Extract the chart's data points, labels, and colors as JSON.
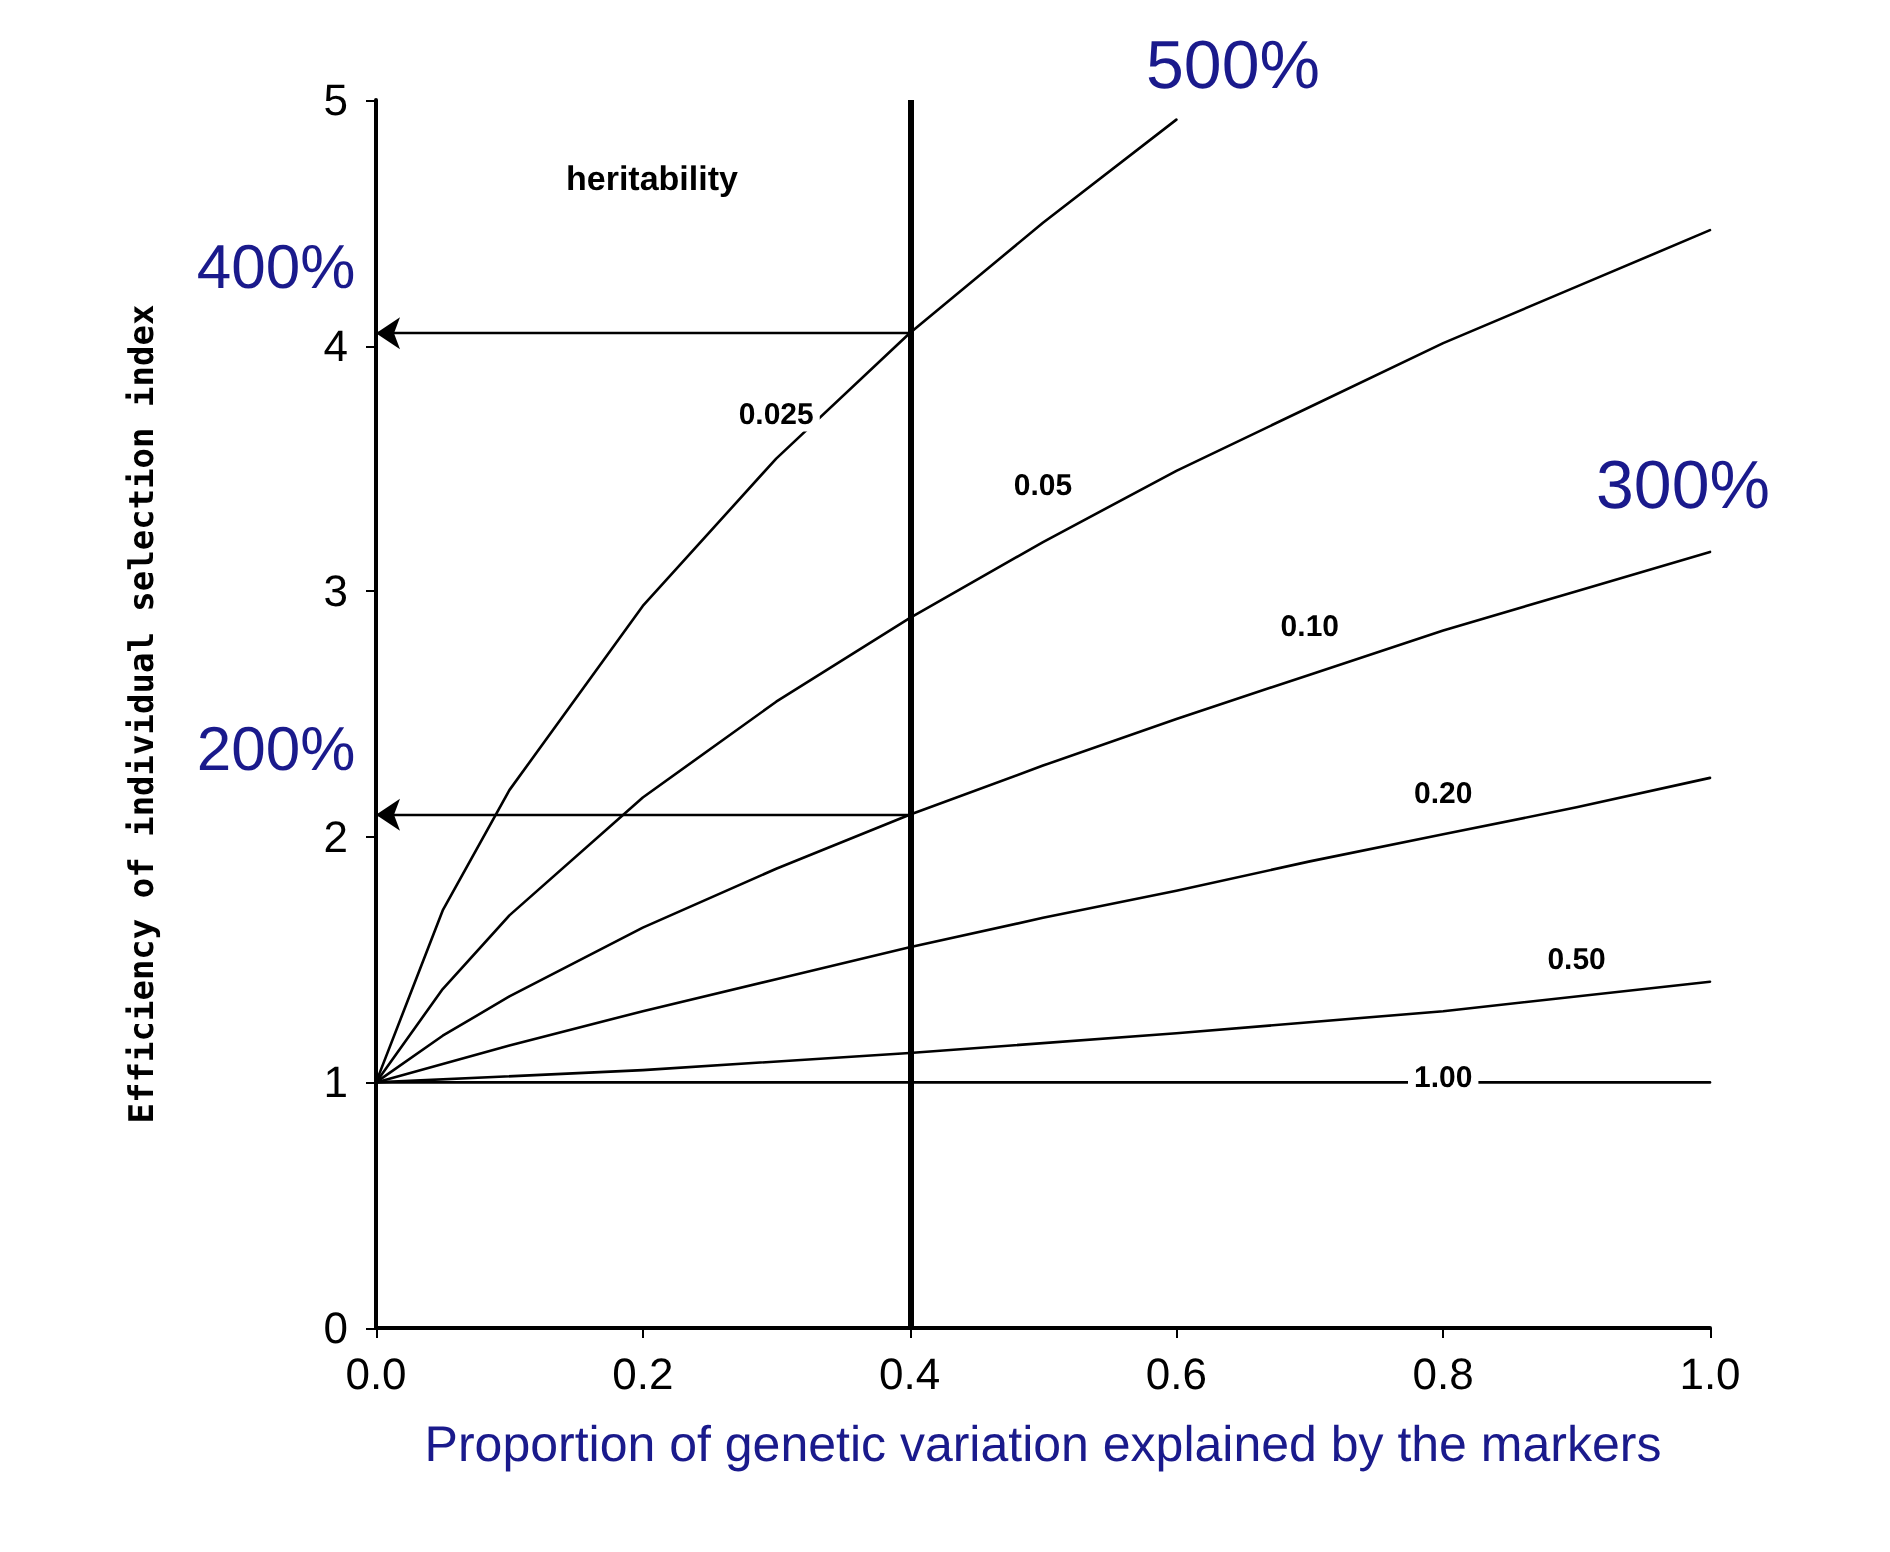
{
  "chart_data": {
    "type": "line",
    "xlabel": "Proportion of genetic variation explained by the markers",
    "ylabel": "Efficiency of individual selection index",
    "legend_title": "heritability",
    "legend": false,
    "grid": false,
    "marker": "none",
    "line_style": "solid",
    "xlim": [
      0,
      1
    ],
    "xticks": [
      {
        "value": 0,
        "label": "0.0"
      },
      0.2,
      0.4,
      0.6,
      0.8,
      {
        "value": 1,
        "label": "1.0"
      }
    ],
    "ylim": [
      0,
      5
    ],
    "yticks": [
      0,
      1,
      2,
      3,
      4,
      5
    ],
    "series": [
      {
        "name": "0.025",
        "color": "#000000",
        "x": [
          0,
          0.05,
          0.1,
          0.2,
          0.3,
          0.4,
          0.5,
          0.6
        ],
        "values": [
          1,
          1.7,
          2.19,
          2.94,
          3.54,
          4.05,
          4.5,
          4.92
        ]
      },
      {
        "name": "0.05",
        "color": "#000000",
        "x": [
          0,
          0.05,
          0.1,
          0.2,
          0.3,
          0.4,
          0.5,
          0.6,
          0.7,
          0.8,
          0.9,
          1
        ],
        "values": [
          1,
          1.38,
          1.68,
          2.16,
          2.55,
          2.89,
          3.2,
          3.49,
          3.75,
          4.01,
          4.24,
          4.47
        ]
      },
      {
        "name": "0.10",
        "color": "#000000",
        "x": [
          0,
          0.05,
          0.1,
          0.2,
          0.3,
          0.4,
          0.5,
          0.6,
          0.7,
          0.8,
          0.9,
          1
        ],
        "values": [
          1,
          1.19,
          1.35,
          1.63,
          1.87,
          2.09,
          2.29,
          2.48,
          2.66,
          2.84,
          3.0,
          3.16
        ]
      },
      {
        "name": "0.20",
        "color": "#000000",
        "x": [
          0,
          0.1,
          0.2,
          0.3,
          0.4,
          0.5,
          0.6,
          0.7,
          0.8,
          0.9,
          1
        ],
        "values": [
          1,
          1.15,
          1.29,
          1.42,
          1.55,
          1.67,
          1.78,
          1.9,
          2.01,
          2.12,
          2.24
        ]
      },
      {
        "name": "0.50",
        "color": "#000000",
        "x": [
          0,
          0.2,
          0.4,
          0.6,
          0.8,
          1
        ],
        "values": [
          1,
          1.05,
          1.12,
          1.2,
          1.29,
          1.41
        ]
      },
      {
        "name": "1.00",
        "color": "#000000",
        "x": [
          0,
          1
        ],
        "values": [
          1,
          1
        ]
      }
    ],
    "ref_lines": [
      {
        "axis": "x",
        "value": 0.4,
        "color": "#000000"
      }
    ],
    "annotations": [
      "500%",
      {
        "text": "400%",
        "x": 0.4,
        "y": 4.05
      },
      "300%",
      {
        "text": "200%",
        "x": 0.4,
        "y": 2.09
      }
    ]
  }
}
